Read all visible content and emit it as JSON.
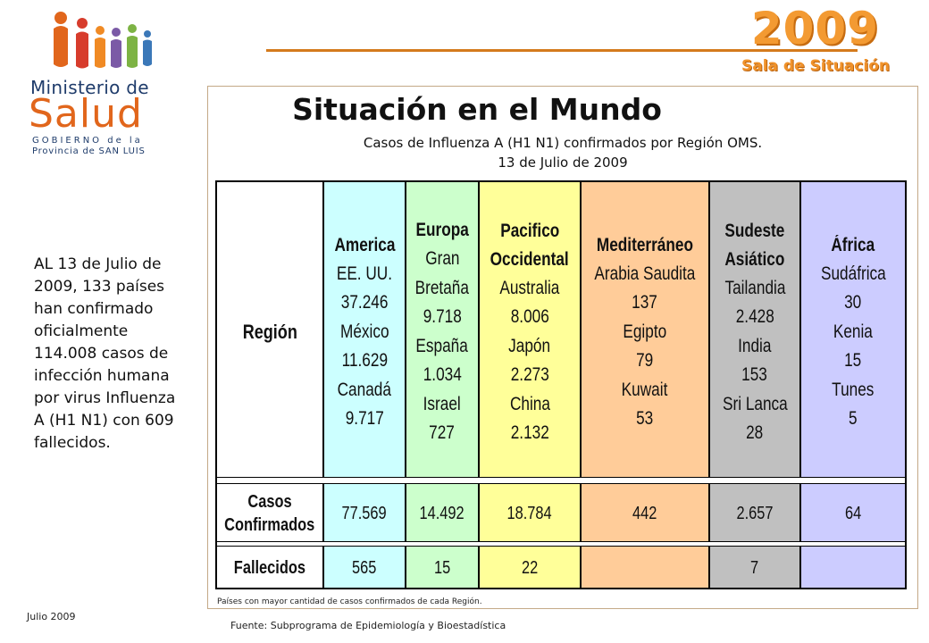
{
  "logo": {
    "line1": "Ministerio de",
    "line2": "Salud",
    "line3": "GOBIERNO de la",
    "line4": "Provincia de SAN LUIS",
    "colors": {
      "orange": "#e1661c",
      "navy": "#1f3c6b",
      "green": "#7db344",
      "purple": "#7b5aa6",
      "red": "#d73c2c"
    }
  },
  "header": {
    "year": "2009",
    "subtitle": "Sala de Situación",
    "accent": "#f39a32"
  },
  "sidebar_text": "AL 13 de Julio de 2009, 133 países han confirmado oficialmente 114.008 casos de infección humana por virus Influenza A (H1 N1) con 609 fallecidos.",
  "footer": {
    "date": "Julio 2009",
    "source": "Fuente: Subprograma de Epidemiología y Bioestadística"
  },
  "slide": {
    "title": "Situación en el Mundo",
    "subtitle_line1": "Casos de Influenza A (H1 N1) confirmados por Región OMS.",
    "subtitle_line2": "13 de Julio de 2009",
    "note": "Países con mayor cantidad de casos confirmados de cada Región."
  },
  "table": {
    "row_header": "Región",
    "casos_label": [
      "Casos",
      "Confirmados"
    ],
    "fallecidos_label": "Fallecidos",
    "regions": [
      {
        "name": [
          "America"
        ],
        "countries": [
          "EE. UU.",
          "37.246",
          "México",
          "11.629",
          "Canadá",
          "9.717"
        ],
        "casos": "77.569",
        "fallecidos": "565",
        "color": "#ccffff"
      },
      {
        "name": [
          "Europa"
        ],
        "countries": [
          "Gran",
          "Bretaña",
          "9.718",
          "España",
          "1.034",
          "Israel",
          "727"
        ],
        "casos": "14.492",
        "fallecidos": "15",
        "color": "#ccffcc"
      },
      {
        "name": [
          "Pacifico",
          "Occidental"
        ],
        "countries": [
          "Australia",
          "8.006",
          "Japón",
          "2.273",
          "China",
          "2.132"
        ],
        "casos": "18.784",
        "fallecidos": "22",
        "color": "#ffff99"
      },
      {
        "name": [
          "Mediterráneo"
        ],
        "countries": [
          "Arabia Saudita",
          "137",
          "Egipto",
          "79",
          "Kuwait",
          "53"
        ],
        "casos": "442",
        "fallecidos": "",
        "color": "#ffcc99"
      },
      {
        "name": [
          "Sudeste",
          "Asiático"
        ],
        "countries": [
          "Tailandia",
          "2.428",
          "India",
          "153",
          "Sri Lanca",
          "28"
        ],
        "casos": "2.657",
        "fallecidos": "7",
        "color": "#c0c0c0"
      },
      {
        "name": [
          "África"
        ],
        "countries": [
          "Sudáfrica",
          "30",
          "Kenia",
          "15",
          "Tunes",
          "5"
        ],
        "casos": "64",
        "fallecidos": "",
        "color": "#ccccff"
      }
    ]
  }
}
